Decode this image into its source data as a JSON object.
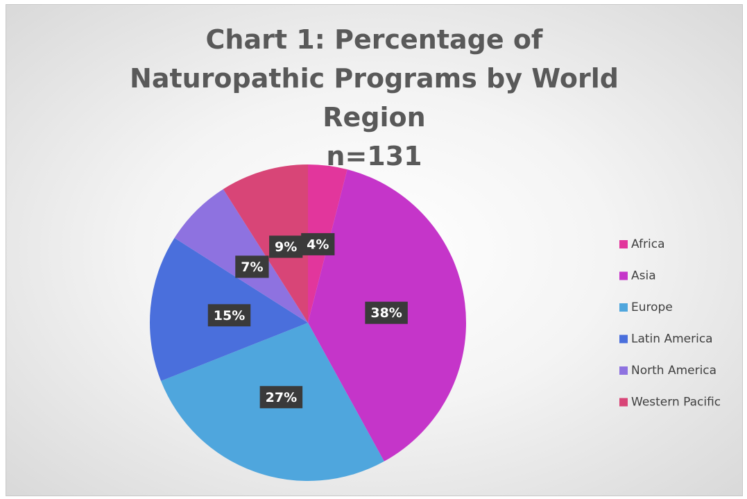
{
  "chart_data": {
    "type": "pie",
    "title": "Chart 1: Percentage of Naturopathic Programs by World Region",
    "subtitle": "n=131",
    "categories": [
      "Africa",
      "Asia",
      "Europe",
      "Latin America",
      "North America",
      "Western Pacific"
    ],
    "values": [
      4,
      38,
      27,
      15,
      7,
      9
    ],
    "value_labels": [
      "4%",
      "38%",
      "27%",
      "15%",
      "7%",
      "9%"
    ],
    "colors": [
      "#e2369c",
      "#c535c9",
      "#4fa6dd",
      "#4a6fdc",
      "#8e72e0",
      "#d84577"
    ],
    "legend": "right"
  }
}
